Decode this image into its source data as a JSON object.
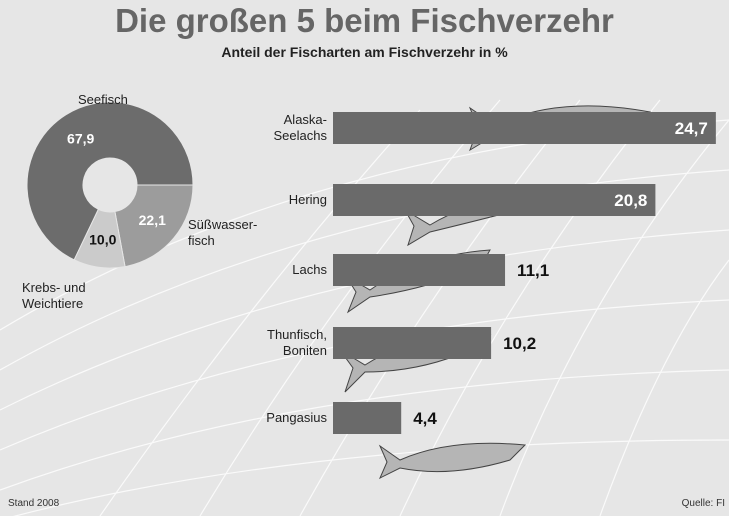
{
  "title": "Die großen 5 beim Fischverzehr",
  "subtitle": "Anteil der Fischarten am Fischverzehr in %",
  "footer_left": "Stand 2008",
  "footer_right": "Quelle: FI",
  "chart_data": [
    {
      "type": "pie",
      "categories": [
        "Seefisch",
        "Süßwasser-\nfisch",
        "Krebs- und\nWeichtiere"
      ],
      "values": [
        67.9,
        22.1,
        10.0
      ],
      "value_labels": [
        "67,9",
        "22,1",
        "10,0"
      ],
      "colors": [
        "#6c6c6c",
        "#9c9c9c",
        "#cbcbcb"
      ],
      "donut": true
    },
    {
      "type": "barh",
      "categories": [
        "Alaska-\nSeelachs",
        "Hering",
        "Lachs",
        "Thunfisch,\nBoniten",
        "Pangasius"
      ],
      "values": [
        24.7,
        20.8,
        11.1,
        10.2,
        4.4
      ],
      "value_labels": [
        "24,7",
        "20,8",
        "11,1",
        "10,2",
        "4,4"
      ],
      "color": "#6a6a6a"
    }
  ]
}
